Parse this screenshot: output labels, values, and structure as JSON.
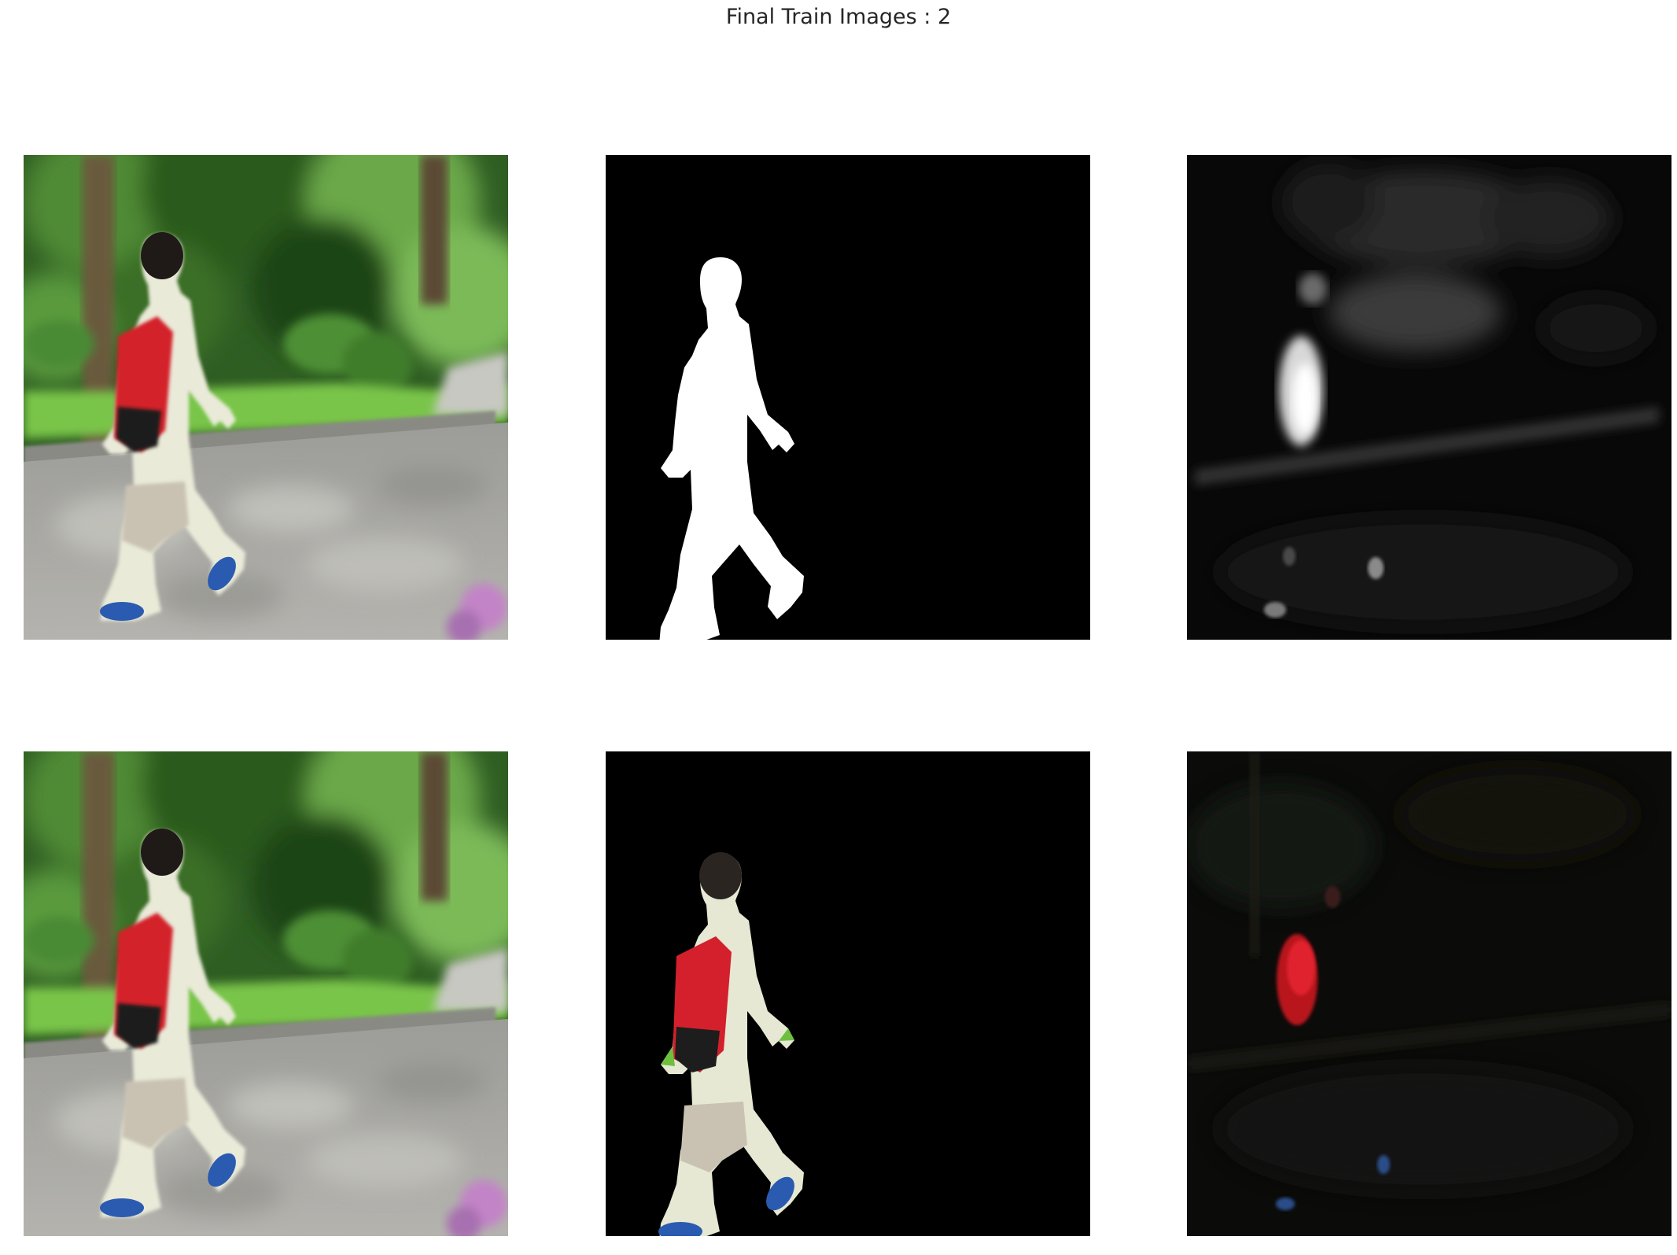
{
  "figure": {
    "suptitle": "Final Train Images : 2"
  },
  "panels": [
    {
      "row": 0,
      "col": 0,
      "content": "original photo of person walking with red backpack in park"
    },
    {
      "row": 0,
      "col": 1,
      "content": "binary mask, white person silhouette on black"
    },
    {
      "row": 0,
      "col": 2,
      "content": "grayscale predicted saliency map"
    },
    {
      "row": 1,
      "col": 0,
      "content": "original photo of person walking with red backpack in park"
    },
    {
      "row": 1,
      "col": 1,
      "content": "photo masked to person only on black"
    },
    {
      "row": 1,
      "col": 2,
      "content": "dark color predicted masked image with red backpack"
    }
  ],
  "colors": {
    "foliage": "#3d7a2a",
    "grass": "#6fbf3e",
    "road": "#a9a9a4",
    "backpack": "#d3202c",
    "shirt": "#eceedb",
    "shorts": "#c9c2b2",
    "shoes": "#2a5bb0",
    "title": "#262626"
  }
}
